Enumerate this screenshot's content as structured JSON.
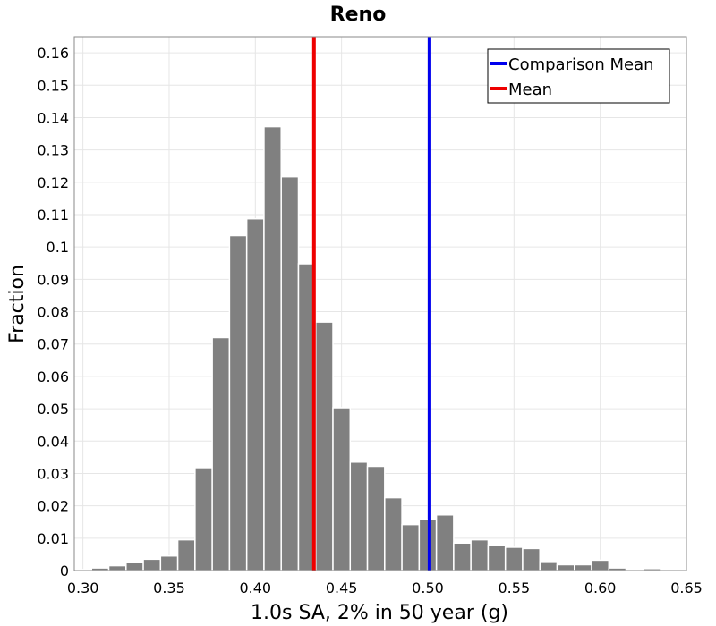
{
  "chart_data": {
    "type": "bar",
    "title": "Reno",
    "xlabel": "1.0s SA, 2% in 50 year (g)",
    "ylabel": "Fraction",
    "xlim": [
      0.295,
      0.65
    ],
    "ylim": [
      0,
      0.165
    ],
    "bin_width": 0.01,
    "bin_centers": [
      0.3,
      0.31,
      0.32,
      0.33,
      0.34,
      0.35,
      0.36,
      0.37,
      0.38,
      0.39,
      0.4,
      0.41,
      0.42,
      0.43,
      0.44,
      0.45,
      0.46,
      0.47,
      0.48,
      0.49,
      0.5,
      0.51,
      0.52,
      0.53,
      0.54,
      0.55,
      0.56,
      0.57,
      0.58,
      0.59,
      0.6,
      0.61,
      0.62,
      0.63,
      0.64
    ],
    "values": [
      0.0003,
      0.0008,
      0.0015,
      0.0025,
      0.0035,
      0.0045,
      0.0095,
      0.0318,
      0.072,
      0.1035,
      0.1087,
      0.1372,
      0.1217,
      0.0948,
      0.0768,
      0.0503,
      0.0335,
      0.0322,
      0.0225,
      0.0142,
      0.0158,
      0.0172,
      0.0085,
      0.0095,
      0.0078,
      0.0072,
      0.0068,
      0.0028,
      0.0018,
      0.0018,
      0.0032,
      0.0008,
      0.0003,
      0.0006,
      0.0002
    ],
    "xticks": [
      "0.30",
      "0.35",
      "0.40",
      "0.45",
      "0.50",
      "0.55",
      "0.60",
      "0.65"
    ],
    "xtick_values": [
      0.3,
      0.35,
      0.4,
      0.45,
      0.5,
      0.55,
      0.6,
      0.65
    ],
    "yticks": [
      "0",
      "0.01",
      "0.02",
      "0.03",
      "0.04",
      "0.05",
      "0.06",
      "0.07",
      "0.08",
      "0.09",
      "0.1",
      "0.11",
      "0.12",
      "0.13",
      "0.14",
      "0.15",
      "0.16"
    ],
    "ytick_values": [
      0,
      0.01,
      0.02,
      0.03,
      0.04,
      0.05,
      0.06,
      0.07,
      0.08,
      0.09,
      0.1,
      0.11,
      0.12,
      0.13,
      0.14,
      0.15,
      0.16
    ],
    "lines": [
      {
        "name": "Comparison Mean",
        "x": 0.501,
        "color": "#0000ee"
      },
      {
        "name": "Mean",
        "x": 0.434,
        "color": "#ee0000"
      }
    ],
    "legend": {
      "placement": "top-right",
      "entries": [
        "Comparison Mean",
        "Mean"
      ]
    },
    "grid": true
  }
}
